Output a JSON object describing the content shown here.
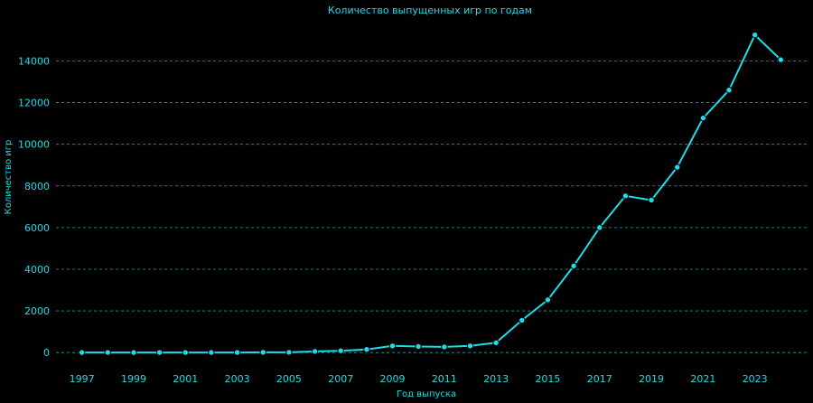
{
  "chart_data": {
    "type": "line",
    "title": "Количество выпущенных игр по годам",
    "xlabel": "Год выпуска",
    "ylabel": "Количество игр",
    "x": [
      1997,
      1998,
      1999,
      2000,
      2001,
      2002,
      2003,
      2004,
      2005,
      2006,
      2007,
      2008,
      2009,
      2010,
      2011,
      2012,
      2013,
      2014,
      2015,
      2016,
      2017,
      2018,
      2019,
      2020,
      2021,
      2022,
      2023,
      2024
    ],
    "values": [
      2,
      3,
      2,
      4,
      3,
      3,
      5,
      10,
      12,
      55,
      85,
      150,
      320,
      290,
      270,
      320,
      470,
      1550,
      2530,
      4160,
      6000,
      7520,
      7320,
      8900,
      11260,
      12600,
      15250,
      14060
    ],
    "xticks": [
      "1997",
      "1999",
      "2001",
      "2003",
      "2005",
      "2007",
      "2009",
      "2011",
      "2013",
      "2015",
      "2017",
      "2019",
      "2021",
      "2023"
    ],
    "yticks": [
      "0",
      "2000",
      "4000",
      "6000",
      "8000",
      "10000",
      "12000",
      "14000"
    ],
    "ylim": [
      -600,
      15800
    ],
    "xlim": [
      1996.0,
      2025.0
    ],
    "grid": "horizontal dashed",
    "color": "#1ddde8",
    "background": "#000000"
  }
}
